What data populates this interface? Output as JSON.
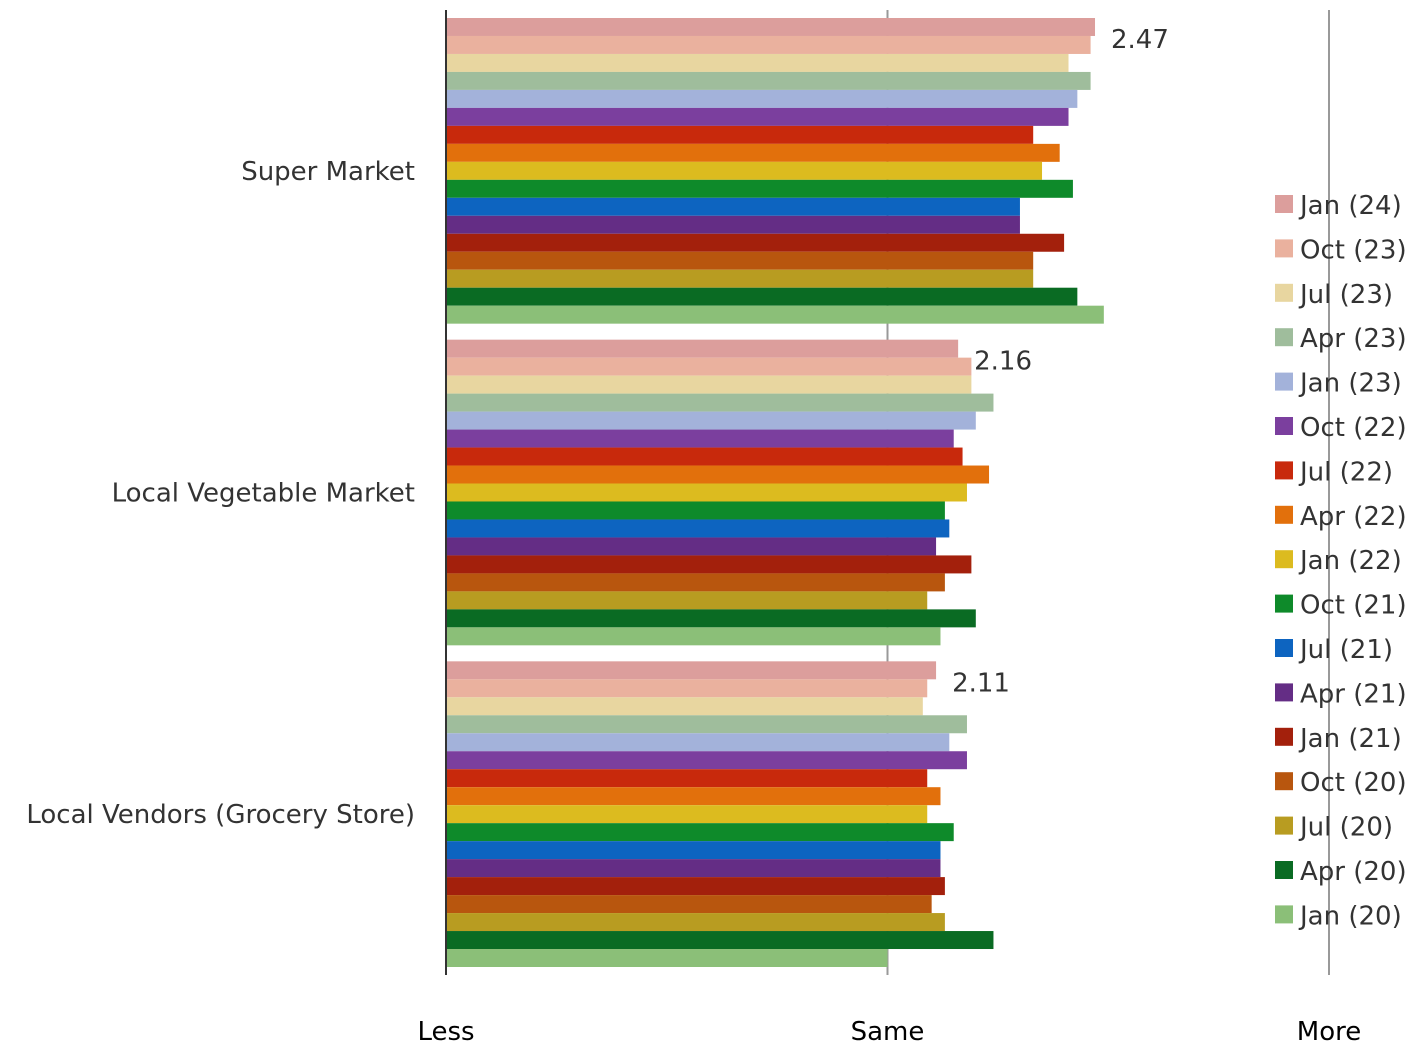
{
  "chart_data": {
    "type": "bar",
    "orientation": "horizontal",
    "title": "",
    "xlabel": "",
    "ylabel": "",
    "xlim": [
      1,
      3
    ],
    "x_ticks": [
      {
        "value": 1,
        "label": "Less"
      },
      {
        "value": 2,
        "label": "Same"
      },
      {
        "value": 3,
        "label": "More"
      }
    ],
    "grid": true,
    "legend_position": "right",
    "categories": [
      "Super Market",
      "Local Vegetable Market",
      "Local Vendors (Grocery Store)"
    ],
    "series": [
      {
        "name": "Jan (24)",
        "color": "#dc9e9c",
        "values": [
          2.47,
          2.16,
          2.11
        ]
      },
      {
        "name": "Oct (23)",
        "color": "#eab19e",
        "values": [
          2.46,
          2.19,
          2.09
        ]
      },
      {
        "name": "Jul (23)",
        "color": "#e8d6a0",
        "values": [
          2.41,
          2.19,
          2.08
        ]
      },
      {
        "name": "Apr (23)",
        "color": "#9fbd9c",
        "values": [
          2.46,
          2.24,
          2.18
        ]
      },
      {
        "name": "Jan (23)",
        "color": "#a3b2da",
        "values": [
          2.43,
          2.2,
          2.14
        ]
      },
      {
        "name": "Oct (22)",
        "color": "#7b3f9e",
        "values": [
          2.41,
          2.15,
          2.18
        ]
      },
      {
        "name": "Jul (22)",
        "color": "#c8290c",
        "values": [
          2.33,
          2.17,
          2.09
        ]
      },
      {
        "name": "Apr (22)",
        "color": "#e2700c",
        "values": [
          2.39,
          2.23,
          2.12
        ]
      },
      {
        "name": "Jan (22)",
        "color": "#dcbb1f",
        "values": [
          2.35,
          2.18,
          2.09
        ]
      },
      {
        "name": "Oct (21)",
        "color": "#0e8a2a",
        "values": [
          2.42,
          2.13,
          2.15
        ]
      },
      {
        "name": "Jul (21)",
        "color": "#0d64c0",
        "values": [
          2.3,
          2.14,
          2.12
        ]
      },
      {
        "name": "Apr (21)",
        "color": "#642d85",
        "values": [
          2.3,
          2.11,
          2.12
        ]
      },
      {
        "name": "Jan (21)",
        "color": "#a3200c",
        "values": [
          2.4,
          2.19,
          2.13
        ]
      },
      {
        "name": "Oct (20)",
        "color": "#b8560e",
        "values": [
          2.33,
          2.13,
          2.1
        ]
      },
      {
        "name": "Jul (20)",
        "color": "#b89c21",
        "values": [
          2.33,
          2.09,
          2.13
        ]
      },
      {
        "name": "Apr (20)",
        "color": "#0a6b23",
        "values": [
          2.43,
          2.2,
          2.24
        ]
      },
      {
        "name": "Jan (20)",
        "color": "#8bbf78",
        "values": [
          2.49,
          2.12,
          2.0
        ]
      }
    ],
    "annotations": [
      {
        "category": "Super Market",
        "series": "Jan (24)",
        "text": "2.47"
      },
      {
        "category": "Local Vegetable Market",
        "series": "Jan (24)",
        "text": "2.16"
      },
      {
        "category": "Local Vendors (Grocery Store)",
        "series": "Jan (24)",
        "text": "2.11"
      }
    ]
  }
}
